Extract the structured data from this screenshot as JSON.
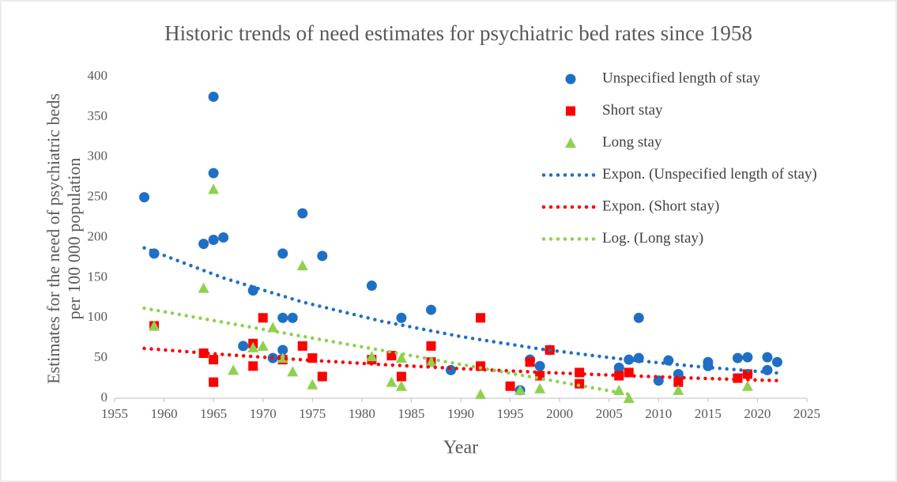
{
  "chart_data": {
    "type": "scatter",
    "title": "Historic trends of need estimates for psychiatric bed rates since 1958",
    "xlabel": "Year",
    "ylabel": "Estimates for the need of psychiatric beds per 100 000 population",
    "ylabel_lines": [
      "Estimates for the need of psychiatric beds",
      "per 100 000 population"
    ],
    "xlim": [
      1955,
      2025
    ],
    "xticks": [
      1955,
      1960,
      1965,
      1970,
      1975,
      1980,
      1985,
      1990,
      1995,
      2000,
      2005,
      2010,
      2015,
      2020,
      2025
    ],
    "ylim": [
      0,
      400
    ],
    "yticks": [
      0,
      50,
      100,
      150,
      200,
      250,
      300,
      350,
      400
    ],
    "grid": false,
    "legend": "right",
    "series": [
      {
        "name": "Unspecified length of stay",
        "color": "#1f6fc5",
        "marker": "circle",
        "x": [
          1958,
          1959,
          1964,
          1965,
          1965,
          1965,
          1966,
          1968,
          1969,
          1971,
          1972,
          1972,
          1972,
          1973,
          1974,
          1976,
          1981,
          1984,
          1987,
          1989,
          1996,
          1997,
          1998,
          1999,
          2006,
          2007,
          2008,
          2008,
          2010,
          2011,
          2012,
          2015,
          2015,
          2018,
          2019,
          2019,
          2021,
          2021,
          2022
        ],
        "values": [
          250,
          180,
          192,
          375,
          280,
          197,
          200,
          65,
          134,
          50,
          180,
          100,
          60,
          100,
          230,
          177,
          140,
          100,
          110,
          35,
          10,
          48,
          40,
          60,
          38,
          48,
          50,
          100,
          22,
          47,
          30,
          45,
          40,
          50,
          51,
          30,
          51,
          35,
          45
        ]
      },
      {
        "name": "Short stay",
        "color": "#ff0000",
        "marker": "square",
        "x": [
          1959,
          1964,
          1965,
          1965,
          1969,
          1969,
          1970,
          1972,
          1974,
          1975,
          1976,
          1981,
          1983,
          1984,
          1987,
          1987,
          1992,
          1992,
          1995,
          1997,
          1998,
          1999,
          2002,
          2002,
          2006,
          2007,
          2012,
          2018,
          2019
        ],
        "values": [
          90,
          56,
          48,
          20,
          68,
          40,
          100,
          48,
          65,
          50,
          27,
          48,
          53,
          27,
          65,
          45,
          100,
          40,
          15,
          45,
          28,
          60,
          32,
          18,
          28,
          32,
          20,
          25,
          30
        ]
      },
      {
        "name": "Long stay",
        "color": "#8fd14f",
        "marker": "triangle",
        "x": [
          1959,
          1964,
          1965,
          1967,
          1969,
          1970,
          1971,
          1972,
          1973,
          1974,
          1975,
          1981,
          1983,
          1984,
          1984,
          1987,
          1992,
          1996,
          1998,
          2006,
          2007,
          2012,
          2019
        ],
        "values": [
          90,
          137,
          260,
          35,
          63,
          65,
          88,
          50,
          33,
          165,
          17,
          52,
          20,
          15,
          50,
          45,
          5,
          10,
          12,
          10,
          0,
          10,
          15
        ]
      },
      {
        "name": "Expon. (Unspecified length of stay)",
        "color": "#1f6fc5",
        "marker": "dotted-line",
        "x": [
          1958,
          1966,
          1974,
          1982,
          1990,
          1998,
          2006,
          2014,
          2022
        ],
        "values": [
          187,
          149.6,
          119.7,
          95.8,
          76.7,
          61.3,
          49.1,
          39.3,
          31.4
        ]
      },
      {
        "name": "Expon. (Short stay)",
        "color": "#ff0000",
        "marker": "dotted-line",
        "x": [
          1958,
          1966,
          1974,
          1982,
          1990,
          1998,
          2006,
          2014,
          2022
        ],
        "values": [
          62,
          54.4,
          47.8,
          41.9,
          36.8,
          32.3,
          28.4,
          24.9,
          21.9
        ]
      },
      {
        "name": "Log. (Long stay)",
        "color": "#8fd14f",
        "marker": "dotted-line",
        "x": [
          1958,
          1966,
          1974,
          1982,
          1990,
          1998,
          2006,
          2007
        ],
        "values": [
          112,
          94.5,
          77,
          59.6,
          42.1,
          24.6,
          7.2,
          5
        ]
      }
    ]
  }
}
